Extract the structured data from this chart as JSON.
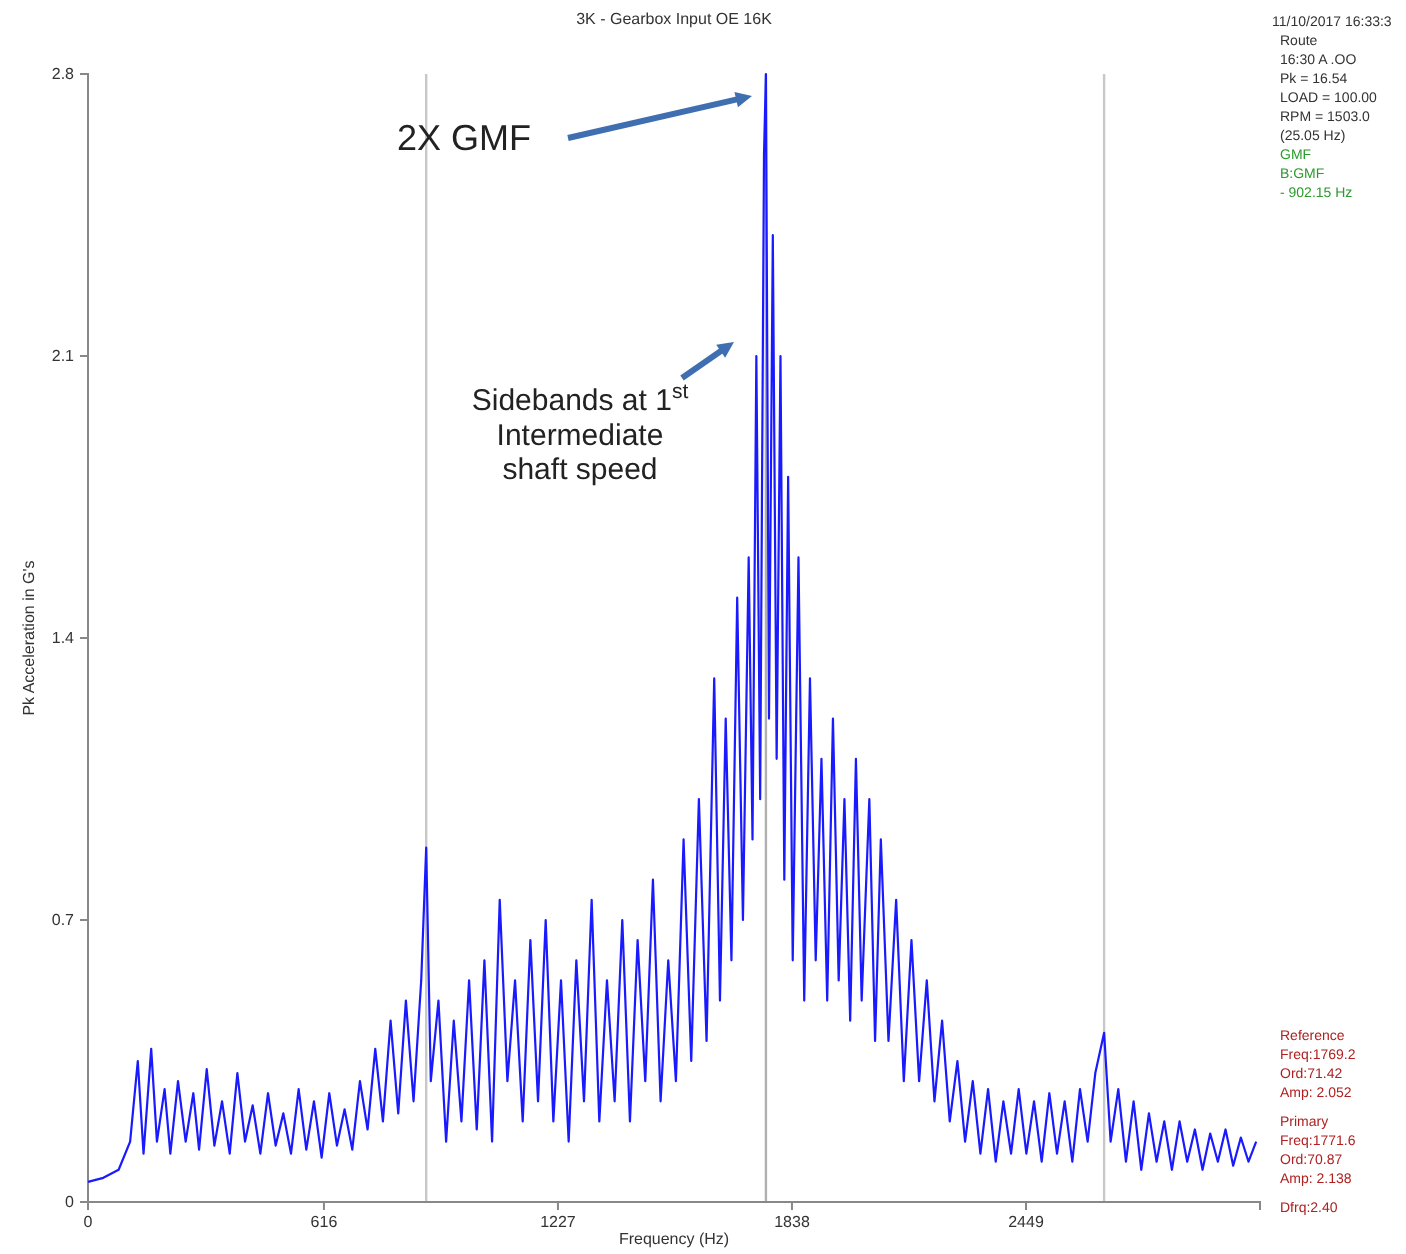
{
  "chart_data": {
    "type": "line",
    "title": "3K - Gearbox Input OE 16K",
    "xlabel": "Frequency (Hz)",
    "ylabel": "Pk Acceleration in G's",
    "xlim": [
      0,
      3060
    ],
    "xticks": [
      0,
      616,
      1227,
      1838,
      2449
    ],
    "ylim": [
      0,
      2.8
    ],
    "yticks": [
      0,
      0.7,
      1.4,
      2.1,
      2.8
    ],
    "grid": false,
    "marker": "none",
    "line_style": "solid",
    "ref_lines": [
      {
        "axis": "x",
        "value": 883,
        "color": "#c8c8c8"
      },
      {
        "axis": "x",
        "value": 1770,
        "color": "#b0b0b0"
      },
      {
        "axis": "x",
        "value": 2653,
        "color": "#c8c8c8"
      }
    ],
    "annotations": [
      "2X GMF",
      "Sidebands at 1$^{st}$ Intermediate shaft speed",
      "11/10/2017 16:33:3",
      "Route",
      "16:30 A .OO",
      "Pk = 16.54",
      "LOAD = 100.00",
      "RPM = 1503.0",
      "(25.05 Hz)",
      "GMF",
      "B:GMF",
      "- 902.15 Hz",
      "Reference",
      "Freq:1769.2",
      "Ord:71.42",
      "Amp: 2.052",
      "Primary",
      "Freq:1771.6",
      "Ord:70.87",
      "Amp: 2.138",
      "Dfrq:2.40"
    ],
    "series": [
      {
        "color": "#1a1aff",
        "x": [
          0,
          40,
          80,
          110,
          130,
          145,
          165,
          180,
          200,
          215,
          235,
          255,
          275,
          290,
          310,
          330,
          350,
          370,
          390,
          410,
          430,
          450,
          470,
          490,
          510,
          530,
          550,
          570,
          590,
          610,
          630,
          650,
          670,
          690,
          710,
          730,
          750,
          770,
          790,
          810,
          830,
          850,
          870,
          883,
          895,
          915,
          935,
          955,
          975,
          995,
          1015,
          1035,
          1055,
          1075,
          1095,
          1115,
          1135,
          1155,
          1175,
          1195,
          1215,
          1235,
          1255,
          1275,
          1295,
          1315,
          1335,
          1355,
          1375,
          1395,
          1415,
          1435,
          1455,
          1475,
          1495,
          1515,
          1535,
          1555,
          1575,
          1595,
          1615,
          1635,
          1650,
          1665,
          1680,
          1695,
          1710,
          1725,
          1735,
          1745,
          1755,
          1765,
          1770,
          1778,
          1788,
          1798,
          1808,
          1818,
          1828,
          1840,
          1855,
          1870,
          1885,
          1900,
          1915,
          1930,
          1945,
          1960,
          1975,
          1990,
          2005,
          2020,
          2040,
          2055,
          2070,
          2090,
          2110,
          2130,
          2150,
          2170,
          2190,
          2210,
          2230,
          2250,
          2270,
          2290,
          2310,
          2330,
          2350,
          2370,
          2390,
          2410,
          2430,
          2450,
          2470,
          2490,
          2510,
          2530,
          2550,
          2570,
          2590,
          2610,
          2630,
          2653,
          2670,
          2690,
          2710,
          2730,
          2750,
          2770,
          2790,
          2810,
          2830,
          2850,
          2870,
          2890,
          2910,
          2930,
          2950,
          2970,
          2990,
          3010,
          3030,
          3050
        ],
        "values": [
          0.05,
          0.06,
          0.08,
          0.15,
          0.35,
          0.12,
          0.38,
          0.15,
          0.28,
          0.12,
          0.3,
          0.15,
          0.27,
          0.13,
          0.33,
          0.14,
          0.25,
          0.12,
          0.32,
          0.15,
          0.24,
          0.12,
          0.27,
          0.14,
          0.22,
          0.12,
          0.28,
          0.13,
          0.25,
          0.11,
          0.27,
          0.14,
          0.23,
          0.13,
          0.3,
          0.18,
          0.38,
          0.2,
          0.45,
          0.22,
          0.5,
          0.25,
          0.55,
          0.88,
          0.3,
          0.5,
          0.15,
          0.45,
          0.2,
          0.55,
          0.18,
          0.6,
          0.15,
          0.75,
          0.3,
          0.55,
          0.2,
          0.65,
          0.25,
          0.7,
          0.2,
          0.55,
          0.15,
          0.6,
          0.25,
          0.75,
          0.2,
          0.55,
          0.25,
          0.7,
          0.2,
          0.65,
          0.3,
          0.8,
          0.25,
          0.6,
          0.3,
          0.9,
          0.35,
          1.0,
          0.4,
          1.3,
          0.5,
          1.2,
          0.6,
          1.5,
          0.7,
          1.6,
          0.9,
          2.1,
          1.0,
          2.6,
          2.8,
          1.2,
          2.4,
          1.1,
          2.1,
          0.8,
          1.8,
          0.6,
          1.6,
          0.5,
          1.3,
          0.6,
          1.1,
          0.5,
          1.2,
          0.55,
          1.0,
          0.45,
          1.1,
          0.5,
          1.0,
          0.4,
          0.9,
          0.4,
          0.75,
          0.3,
          0.65,
          0.3,
          0.55,
          0.25,
          0.45,
          0.2,
          0.35,
          0.15,
          0.3,
          0.12,
          0.28,
          0.1,
          0.25,
          0.12,
          0.28,
          0.12,
          0.25,
          0.1,
          0.27,
          0.12,
          0.25,
          0.1,
          0.28,
          0.15,
          0.32,
          0.42,
          0.15,
          0.28,
          0.1,
          0.25,
          0.08,
          0.22,
          0.1,
          0.2,
          0.08,
          0.2,
          0.1,
          0.18,
          0.08,
          0.17,
          0.1,
          0.18,
          0.09,
          0.16,
          0.1,
          0.15
        ]
      }
    ]
  }
}
